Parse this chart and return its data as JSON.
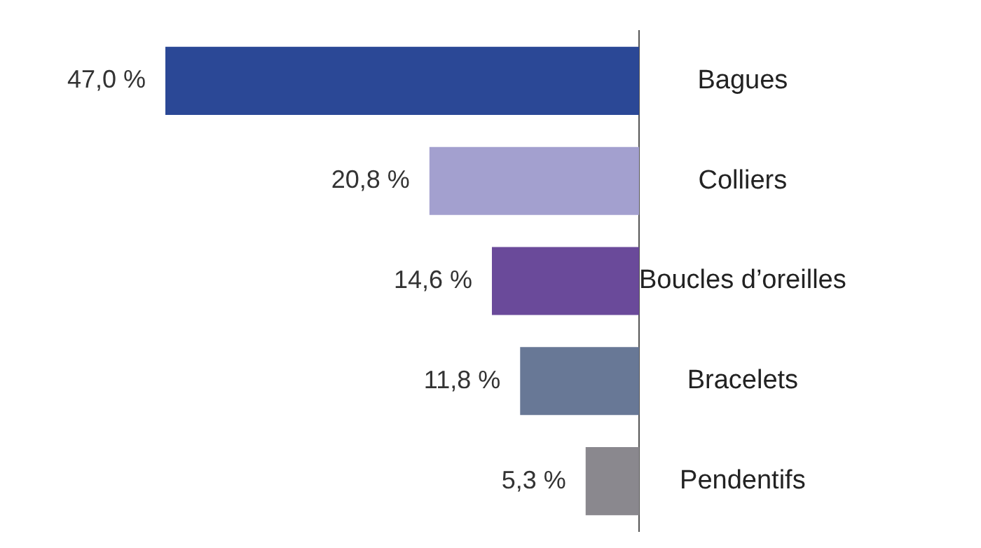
{
  "chart_data": {
    "type": "bar",
    "orientation": "horizontal",
    "categories": [
      "Bagues",
      "Colliers",
      "Boucles d’oreilles",
      "Bracelets",
      "Pendentifs"
    ],
    "values": [
      47.0,
      20.8,
      14.6,
      11.8,
      5.3
    ],
    "colors": [
      "#2b4896",
      "#a3a0cf",
      "#6a4a9a",
      "#687896",
      "#8a888e"
    ],
    "value_labels": [
      "47,0 %",
      "20,8 %",
      "14,6 %",
      "11,8 %",
      "5,3 %"
    ],
    "xlim": [
      47,
      0
    ],
    "tick_labels": "y"
  }
}
